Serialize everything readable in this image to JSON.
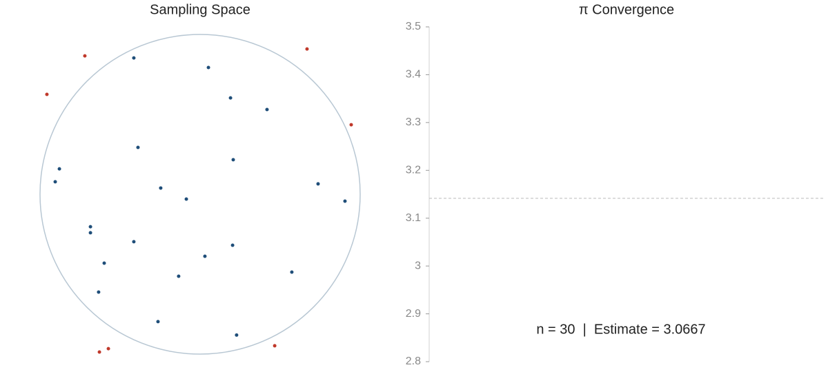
{
  "chart_data": [
    {
      "type": "scatter",
      "title": "Sampling Space",
      "xlim": [
        -1,
        1
      ],
      "ylim": [
        -1,
        1
      ],
      "circle": true,
      "circle_color": "#b8c7d3",
      "series": [
        {
          "color": "#1f4e79",
          "x": [
            -0.414,
            0.052,
            0.19,
            0.418,
            -0.388,
            0.207,
            -0.879,
            -0.905,
            -0.246,
            -0.086,
            0.737,
            0.905,
            -0.685,
            -0.685,
            -0.414,
            0.203,
            0.03,
            -0.599,
            -0.134,
            0.573,
            -0.634,
            -0.263,
            0.228
          ],
          "y": [
            0.853,
            0.793,
            0.603,
            0.53,
            0.293,
            0.216,
            0.159,
            0.078,
            0.039,
            -0.03,
            0.065,
            -0.043,
            -0.203,
            -0.241,
            -0.297,
            -0.319,
            -0.388,
            -0.431,
            -0.513,
            -0.487,
            -0.612,
            -0.797,
            -0.881
          ]
        },
        {
          "color": "#c0392b",
          "x": [
            -0.72,
            0.668,
            -0.957,
            0.944,
            -0.629,
            -0.573,
            0.466
          ],
          "y": [
            0.866,
            0.909,
            0.625,
            0.435,
            -0.987,
            -0.966,
            -0.948
          ]
        }
      ]
    },
    {
      "type": "line",
      "title": "π Convergence",
      "ylim": [
        2.8,
        3.5
      ],
      "yticks": [
        2.8,
        2.9,
        3.0,
        3.1,
        3.2,
        3.3,
        3.4,
        3.5
      ],
      "reference_line": 3.14159,
      "reference_color": "#bbbbbb",
      "annotation": "n = 30  |  Estimate = 3.0667"
    }
  ]
}
